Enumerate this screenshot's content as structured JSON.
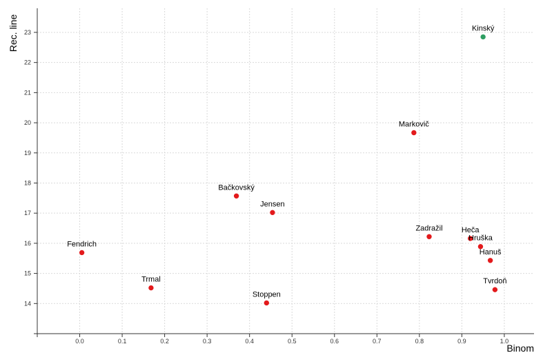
{
  "chart_data": {
    "type": "scatter",
    "xlabel": "Binom",
    "ylabel": "Rec. line",
    "xlim": [
      -0.1,
      1.07
    ],
    "ylim": [
      13.0,
      23.8
    ],
    "x_ticks": [
      0.0,
      0.1,
      0.2,
      0.3,
      0.4,
      0.5,
      0.6,
      0.7,
      0.8,
      0.9,
      1.0
    ],
    "x_tick_labels": [
      "0.0",
      "0.1",
      "0.2",
      "0.3",
      "0.4",
      "0.5",
      "0.6",
      "0.7",
      "0.8",
      "0.9",
      "1.0"
    ],
    "y_ticks": [
      14,
      15,
      16,
      17,
      18,
      19,
      20,
      21,
      22,
      23
    ],
    "y_tick_labels": [
      "14",
      "15",
      "16",
      "17",
      "18",
      "19",
      "20",
      "21",
      "22",
      "23"
    ],
    "grid": true,
    "colors": {
      "red": "#e31a1c",
      "green": "#2e9e62"
    },
    "points": [
      {
        "label": "Kinský",
        "x": 0.95,
        "y": 22.85,
        "color": "green"
      },
      {
        "label": "Markovič",
        "x": 0.787,
        "y": 19.67,
        "color": "red"
      },
      {
        "label": "Bačkovský",
        "x": 0.369,
        "y": 17.57,
        "color": "red"
      },
      {
        "label": "Jensen",
        "x": 0.454,
        "y": 17.02,
        "color": "red"
      },
      {
        "label": "Zadražil",
        "x": 0.823,
        "y": 16.22,
        "color": "red"
      },
      {
        "label": "Heča",
        "x": 0.92,
        "y": 16.16,
        "color": "red"
      },
      {
        "label": "Hruška",
        "x": 0.944,
        "y": 15.89,
        "color": "red"
      },
      {
        "label": "Hanuš",
        "x": 0.967,
        "y": 15.43,
        "color": "red"
      },
      {
        "label": "Fendrich",
        "x": 0.005,
        "y": 15.69,
        "color": "red"
      },
      {
        "label": "Trmal",
        "x": 0.168,
        "y": 14.52,
        "color": "red"
      },
      {
        "label": "Stoppen",
        "x": 0.44,
        "y": 14.02,
        "color": "red"
      },
      {
        "label": "Tvrdoň",
        "x": 0.978,
        "y": 14.46,
        "color": "red"
      }
    ]
  }
}
